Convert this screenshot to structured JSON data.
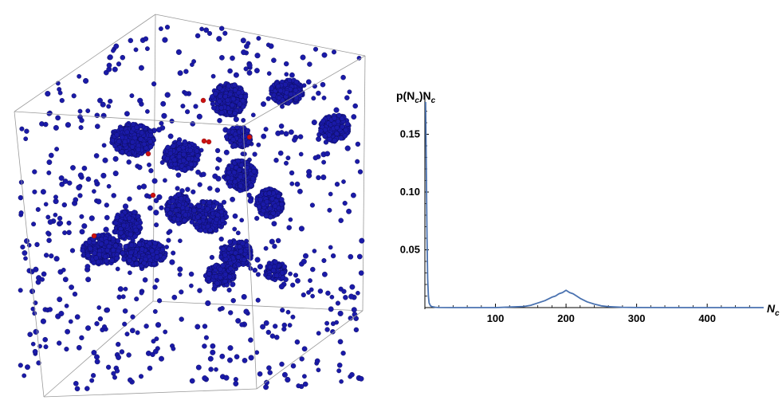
{
  "colors": {
    "particle": "#1a1aa8",
    "particle_edge": "#0a0a55",
    "highlight_particle": "#cc1111",
    "box_edge": "#9a9a9a",
    "series_line": "#4a72b0",
    "series_fill": "#8fb0dd",
    "axis": "#000000"
  },
  "scene": {
    "type": "3d particle snapshot",
    "particle_color_name": "blue",
    "highlight_color_name": "red"
  },
  "chart_data": {
    "type": "line",
    "ylabel": {
      "base": "p(N",
      "sub": "c",
      "mid": ")N",
      "sub2": "c"
    },
    "xlabel": {
      "base": "N",
      "sub": "c"
    },
    "xlim": [
      0,
      480
    ],
    "ylim": [
      0,
      0.18
    ],
    "x_ticks": [
      {
        "value": 100,
        "label": "100"
      },
      {
        "value": 200,
        "label": "200"
      },
      {
        "value": 300,
        "label": "300"
      },
      {
        "value": 400,
        "label": "400"
      }
    ],
    "y_ticks": [
      {
        "value": 0.05,
        "label": "0.05"
      },
      {
        "value": 0.1,
        "label": "0.10"
      },
      {
        "value": 0.15,
        "label": "0.15"
      }
    ],
    "series": [
      {
        "x": [
          1,
          2,
          3,
          4,
          5,
          6,
          8,
          10,
          15,
          20,
          40,
          60,
          80,
          100,
          120,
          140,
          150,
          160,
          170,
          180,
          185,
          190,
          195,
          200,
          205,
          210,
          215,
          220,
          230,
          240,
          250,
          260,
          280,
          300,
          350,
          400,
          450,
          480
        ],
        "y": [
          0.178,
          0.12,
          0.06,
          0.025,
          0.01,
          0.004,
          0.0015,
          0.0008,
          0.0003,
          0.0001,
          0.0,
          0.0,
          0.0,
          0.0,
          0.0005,
          0.001,
          0.002,
          0.004,
          0.006,
          0.009,
          0.01,
          0.012,
          0.013,
          0.015,
          0.013,
          0.012,
          0.01,
          0.008,
          0.005,
          0.003,
          0.0015,
          0.0008,
          0.0003,
          0.0001,
          0.0,
          0.0,
          0.0,
          0.0
        ]
      }
    ]
  }
}
